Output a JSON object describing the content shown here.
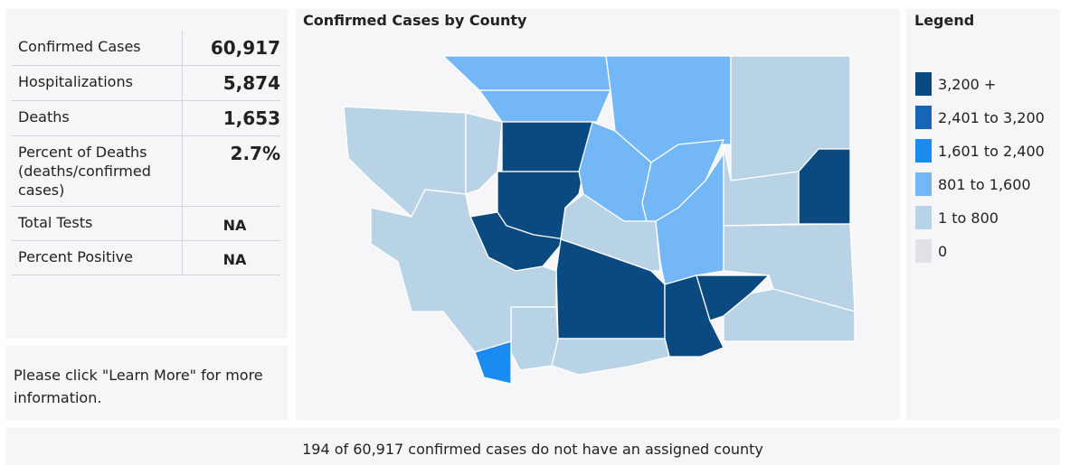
{
  "stats": {
    "rows": [
      {
        "label": "Confirmed Cases",
        "value": "60,917"
      },
      {
        "label": "Hospitalizations",
        "value": "5,874"
      },
      {
        "label": "Deaths",
        "value": "1,653"
      },
      {
        "label": "Percent of Deaths (deaths/confirmed cases)",
        "value": "2.7%"
      },
      {
        "label": "Total Tests",
        "value": "NA"
      },
      {
        "label": "Percent Positive",
        "value": "NA"
      }
    ]
  },
  "note": "Please click \"Learn More\" for more information.",
  "map": {
    "title": "Confirmed Cases by County"
  },
  "legend": {
    "title": "Legend",
    "items": [
      {
        "label": "3,200 +",
        "color": "#0b4a80"
      },
      {
        "label": "2,401 to 3,200",
        "color": "#1565b8"
      },
      {
        "label": "1,601 to 2,400",
        "color": "#1a8cf0"
      },
      {
        "label": "801 to 1,600",
        "color": "#73b7f7"
      },
      {
        "label": "1 to 800",
        "color": "#b9d3e6"
      },
      {
        "label": "0",
        "color": "#e2e2e6"
      }
    ]
  },
  "footer": "194 of 60,917 confirmed cases do not have an assigned county"
}
